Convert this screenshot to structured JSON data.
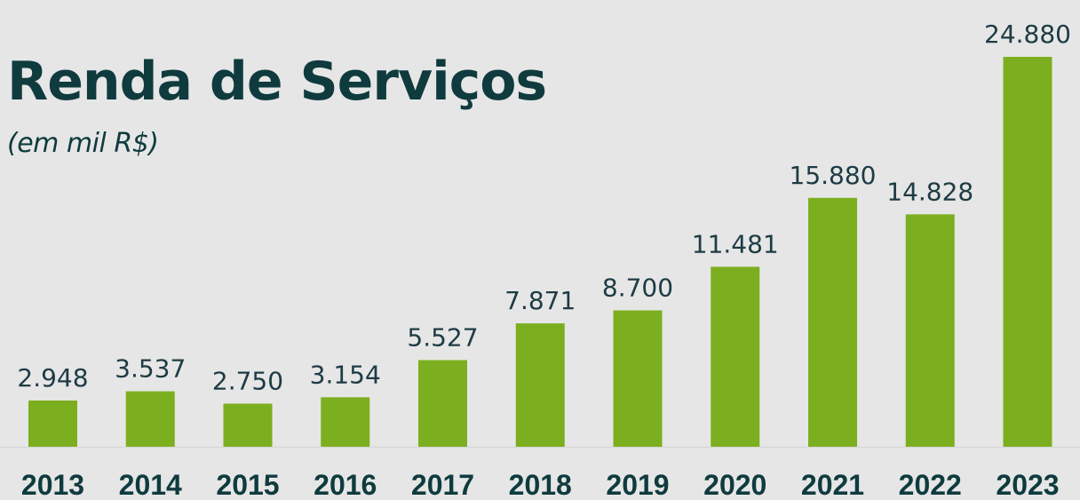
{
  "title": "Renda de Serviços",
  "subtitle": "(em mil R$)",
  "colors": {
    "background": "#e6e6e6",
    "bar": "#7caf1f",
    "text": "#0f3b3e",
    "value_label": "#1d3b44",
    "axis_line": "#d4d4d4"
  },
  "chart_data": {
    "type": "bar",
    "categories": [
      "2013",
      "2014",
      "2015",
      "2016",
      "2017",
      "2018",
      "2019",
      "2020",
      "2021",
      "2022",
      "2023"
    ],
    "values": [
      2948,
      3537,
      2750,
      3154,
      5527,
      7871,
      8700,
      11481,
      15880,
      14828,
      24880
    ],
    "value_labels": [
      "2.948",
      "3.537",
      "2.750",
      "3.154",
      "5.527",
      "7.871",
      "8.700",
      "11.481",
      "15.880",
      "14.828",
      "24.880"
    ],
    "title": "Renda de Serviços",
    "subtitle": "(em mil R$)",
    "ylim": [
      0,
      24880
    ],
    "grid": false,
    "legend": "none"
  }
}
